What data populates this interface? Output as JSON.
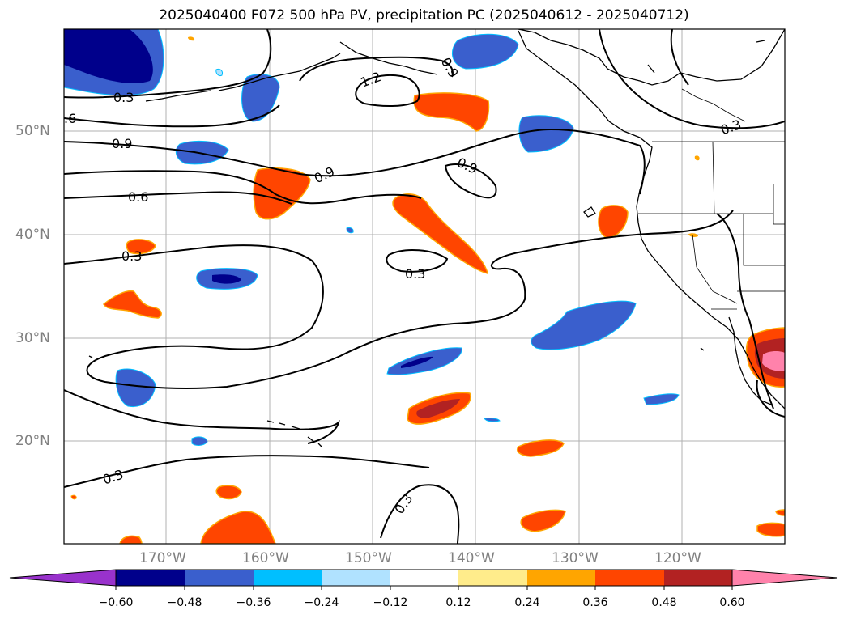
{
  "title": "2025040400 F072 500 hPa PV, precipitation PC (2025040612 - 2025040712)",
  "map": {
    "lat_labels": [
      "50°N",
      "40°N",
      "30°N",
      "20°N"
    ],
    "lon_labels": [
      "170°W",
      "160°W",
      "150°W",
      "140°W",
      "130°W",
      "120°W"
    ],
    "contour_labels": [
      ".6",
      "0.3",
      "0.9",
      "0.6",
      "0.3",
      "1.2",
      "0.9",
      "0.9",
      "0.9",
      "0.3",
      "0.3",
      "0.3",
      "0.3"
    ]
  },
  "colorbar": {
    "ticks": [
      "−0.60",
      "−0.48",
      "−0.36",
      "−0.24",
      "−0.12",
      "0.12",
      "0.24",
      "0.36",
      "0.48",
      "0.60"
    ],
    "colors": [
      "#9932cc",
      "#00008b",
      "#3a5fcd",
      "#00bfff",
      "#b0e2ff",
      "#ffffff",
      "#ffec8b",
      "#ffa500",
      "#ff4500",
      "#b22222",
      "#ff82ab"
    ]
  }
}
